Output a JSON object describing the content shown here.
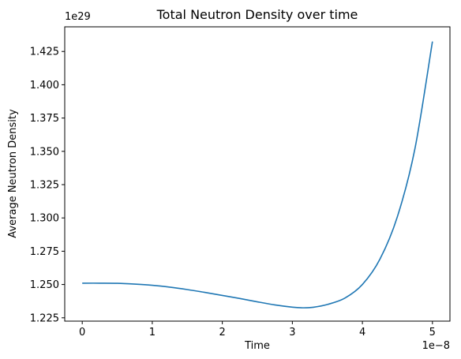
{
  "chart_data": {
    "type": "line",
    "title": "Total Neutron Density over time",
    "xlabel": "Time",
    "ylabel": "Average Neutron Density",
    "x_offset_label": "1e−8",
    "y_offset_label": "1e29",
    "xlim": [
      -0.25,
      5.25
    ],
    "ylim": [
      1.2225,
      1.4435
    ],
    "x_ticks": [
      0,
      1,
      2,
      3,
      4,
      5
    ],
    "x_tick_labels": [
      "0",
      "1",
      "2",
      "3",
      "4",
      "5"
    ],
    "y_ticks": [
      1.225,
      1.25,
      1.275,
      1.3,
      1.325,
      1.35,
      1.375,
      1.4,
      1.425
    ],
    "y_tick_labels": [
      "1.225",
      "1.250",
      "1.275",
      "1.300",
      "1.325",
      "1.350",
      "1.375",
      "1.400",
      "1.425"
    ],
    "grid": false,
    "series": [
      {
        "color": "#1f77b4",
        "x": [
          0,
          0.25,
          0.5,
          0.75,
          1.0,
          1.25,
          1.5,
          1.75,
          2.0,
          2.25,
          2.5,
          2.75,
          3.0,
          3.15,
          3.3,
          3.5,
          3.75,
          4.0,
          4.25,
          4.5,
          4.75,
          5.0
        ],
        "y": [
          1.251,
          1.251,
          1.2509,
          1.2503,
          1.2494,
          1.248,
          1.2462,
          1.2441,
          1.2418,
          1.2395,
          1.237,
          1.2347,
          1.233,
          1.2325,
          1.2329,
          1.235,
          1.2398,
          1.25,
          1.269,
          1.301,
          1.352,
          1.4325
        ]
      }
    ]
  }
}
